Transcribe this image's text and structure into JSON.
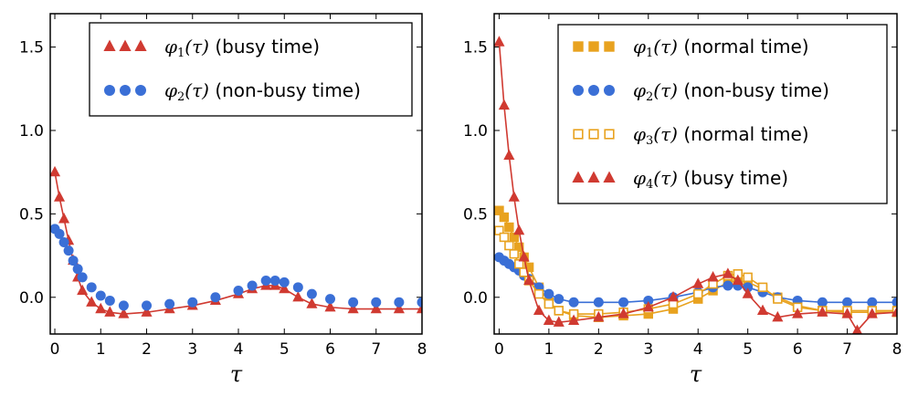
{
  "chart_data": [
    {
      "type": "line",
      "xlabel": "τ",
      "ylabel": "",
      "xlim": [
        -0.1,
        8
      ],
      "ylim": [
        -0.22,
        1.7
      ],
      "xticks": [
        0,
        1,
        2,
        3,
        4,
        5,
        6,
        7,
        8
      ],
      "yticks": [
        0.0,
        0.5,
        1.0,
        1.5
      ],
      "ytick_labels": [
        "0.0",
        "0.5",
        "1.0",
        "1.5"
      ],
      "legend_position": "top-right",
      "series": [
        {
          "name": "φ1(τ) (busy time)",
          "legend_symbol": "φ",
          "legend_sub": "1",
          "legend_arg": "(τ)",
          "legend_text": "(busy time)",
          "marker": "triangle",
          "filled": true,
          "line": true,
          "color": "#d03a31",
          "x": [
            0,
            0.1,
            0.2,
            0.3,
            0.4,
            0.5,
            0.6,
            0.8,
            1.0,
            1.2,
            1.5,
            2.0,
            2.5,
            3.0,
            3.5,
            4.0,
            4.3,
            4.6,
            4.8,
            5.0,
            5.3,
            5.6,
            6.0,
            6.5,
            7.0,
            7.5,
            8.0
          ],
          "values": [
            0.75,
            0.6,
            0.47,
            0.34,
            0.22,
            0.12,
            0.04,
            -0.03,
            -0.07,
            -0.09,
            -0.1,
            -0.09,
            -0.07,
            -0.05,
            -0.02,
            0.02,
            0.05,
            0.07,
            0.07,
            0.05,
            0.0,
            -0.04,
            -0.06,
            -0.07,
            -0.07,
            -0.07,
            -0.07
          ]
        },
        {
          "name": "φ2(τ) (non-busy time)",
          "legend_symbol": "φ",
          "legend_sub": "2",
          "legend_arg": "(τ)",
          "legend_text": "(non-busy time)",
          "marker": "circle",
          "filled": true,
          "line": false,
          "color": "#3a6fd6",
          "x": [
            0,
            0.1,
            0.2,
            0.3,
            0.4,
            0.5,
            0.6,
            0.8,
            1.0,
            1.2,
            1.5,
            2.0,
            2.5,
            3.0,
            3.5,
            4.0,
            4.3,
            4.6,
            4.8,
            5.0,
            5.3,
            5.6,
            6.0,
            6.5,
            7.0,
            7.5,
            8.0
          ],
          "values": [
            0.41,
            0.38,
            0.33,
            0.28,
            0.22,
            0.17,
            0.12,
            0.06,
            0.01,
            -0.02,
            -0.05,
            -0.05,
            -0.04,
            -0.03,
            0.0,
            0.04,
            0.07,
            0.1,
            0.1,
            0.09,
            0.06,
            0.02,
            -0.01,
            -0.03,
            -0.03,
            -0.03,
            -0.03
          ]
        }
      ]
    },
    {
      "type": "line",
      "xlabel": "τ",
      "ylabel": "",
      "xlim": [
        -0.1,
        8
      ],
      "ylim": [
        -0.22,
        1.7
      ],
      "xticks": [
        0,
        1,
        2,
        3,
        4,
        5,
        6,
        7,
        8
      ],
      "yticks": [
        0.0,
        0.5,
        1.0,
        1.5
      ],
      "ytick_labels": [
        "0.0",
        "0.5",
        "1.0",
        "1.5"
      ],
      "legend_position": "top-right",
      "series": [
        {
          "name": "φ1(τ) (normal time)",
          "legend_symbol": "φ",
          "legend_sub": "1",
          "legend_arg": "(τ)",
          "legend_text": "(normal time)",
          "marker": "square",
          "filled": true,
          "line": true,
          "color": "#e8a21f",
          "x": [
            0,
            0.1,
            0.2,
            0.3,
            0.4,
            0.5,
            0.6,
            0.8,
            1.0,
            1.2,
            1.5,
            2.0,
            2.5,
            3.0,
            3.5,
            4.0,
            4.3,
            4.6,
            4.8,
            5.0,
            5.3,
            5.6,
            6.0,
            6.5,
            7.0,
            7.5,
            8.0
          ],
          "values": [
            0.52,
            0.48,
            0.42,
            0.36,
            0.3,
            0.24,
            0.18,
            0.06,
            -0.03,
            -0.08,
            -0.11,
            -0.12,
            -0.11,
            -0.1,
            -0.07,
            -0.01,
            0.04,
            0.09,
            0.1,
            0.09,
            0.05,
            0.0,
            -0.05,
            -0.08,
            -0.09,
            -0.09,
            -0.09
          ]
        },
        {
          "name": "φ2(τ) (non-busy time)",
          "legend_symbol": "φ",
          "legend_sub": "2",
          "legend_arg": "(τ)",
          "legend_text": "(non-busy time)",
          "marker": "circle",
          "filled": true,
          "line": true,
          "color": "#3a6fd6",
          "x": [
            0,
            0.1,
            0.2,
            0.3,
            0.4,
            0.5,
            0.6,
            0.8,
            1.0,
            1.2,
            1.5,
            2.0,
            2.5,
            3.0,
            3.5,
            4.0,
            4.3,
            4.6,
            4.8,
            5.0,
            5.3,
            5.6,
            6.0,
            6.5,
            7.0,
            7.5,
            8.0
          ],
          "values": [
            0.24,
            0.22,
            0.2,
            0.18,
            0.16,
            0.13,
            0.11,
            0.06,
            0.02,
            -0.01,
            -0.03,
            -0.03,
            -0.03,
            -0.02,
            0.0,
            0.03,
            0.06,
            0.07,
            0.07,
            0.06,
            0.03,
            0.0,
            -0.02,
            -0.03,
            -0.03,
            -0.03,
            -0.03
          ]
        },
        {
          "name": "φ3(τ) (normal time)",
          "legend_symbol": "φ",
          "legend_sub": "3",
          "legend_arg": "(τ)",
          "legend_text": "(normal time)",
          "marker": "square",
          "filled": false,
          "line": true,
          "color": "#e8a21f",
          "x": [
            0,
            0.1,
            0.2,
            0.3,
            0.4,
            0.5,
            0.6,
            0.8,
            1.0,
            1.2,
            1.5,
            2.0,
            2.5,
            3.0,
            3.5,
            4.0,
            4.3,
            4.6,
            4.8,
            5.0,
            5.3,
            5.6,
            6.0,
            6.5,
            7.0,
            7.5,
            8.0
          ],
          "values": [
            0.4,
            0.36,
            0.31,
            0.26,
            0.2,
            0.15,
            0.1,
            0.02,
            -0.04,
            -0.08,
            -0.1,
            -0.1,
            -0.09,
            -0.07,
            -0.04,
            0.02,
            0.08,
            0.13,
            0.14,
            0.12,
            0.06,
            -0.01,
            -0.06,
            -0.08,
            -0.08,
            -0.08,
            -0.08
          ]
        },
        {
          "name": "φ4(τ) (busy time)",
          "legend_symbol": "φ",
          "legend_sub": "4",
          "legend_arg": "(τ)",
          "legend_text": "(busy time)",
          "marker": "triangle",
          "filled": true,
          "line": true,
          "color": "#d03a31",
          "x": [
            0,
            0.1,
            0.2,
            0.3,
            0.4,
            0.5,
            0.6,
            0.8,
            1.0,
            1.2,
            1.5,
            2.0,
            2.5,
            3.0,
            3.5,
            4.0,
            4.3,
            4.6,
            4.8,
            5.0,
            5.3,
            5.6,
            6.0,
            6.5,
            7.0,
            7.2,
            7.5,
            8.0
          ],
          "values": [
            1.53,
            1.15,
            0.85,
            0.6,
            0.4,
            0.24,
            0.1,
            -0.08,
            -0.14,
            -0.15,
            -0.14,
            -0.12,
            -0.1,
            -0.06,
            0.0,
            0.08,
            0.12,
            0.14,
            0.1,
            0.02,
            -0.08,
            -0.12,
            -0.1,
            -0.09,
            -0.1,
            -0.2,
            -0.1,
            -0.09
          ]
        }
      ]
    }
  ]
}
